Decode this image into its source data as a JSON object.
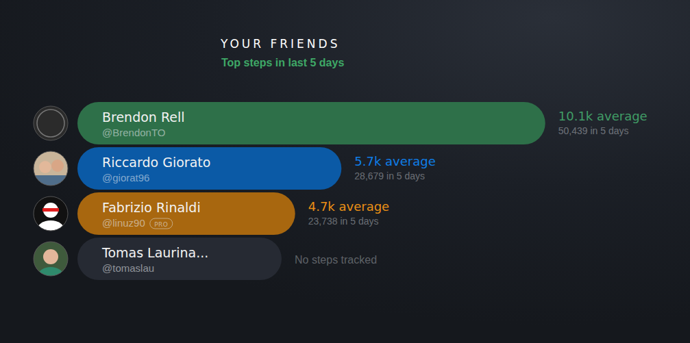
{
  "chart_data": {
    "type": "bar",
    "orientation": "horizontal",
    "title": "YOUR FRIENDS",
    "subtitle": "Top steps in last 5 days",
    "categories": [
      "Brendon Rell",
      "Riccardo Giorato",
      "Fabrizio Rinaldi",
      "Tomas Laurina..."
    ],
    "handles": [
      "@BrendonTO",
      "@giorat96",
      "@linuz90",
      "@tomaslau"
    ],
    "badges": [
      null,
      null,
      "PRO",
      null
    ],
    "values": [
      10.1,
      5.7,
      4.7,
      null
    ],
    "value_labels": [
      "10.1k average",
      "5.7k average",
      "4.7k average",
      "No steps tracked"
    ],
    "total_labels": [
      "50,439 in 5 days",
      "28,679 in 5 days",
      "23,738 in 5 days",
      null
    ],
    "colors": [
      "#2e7049",
      "#0b5aa6",
      "#a8670f",
      "#262a33"
    ],
    "xlim": [
      0,
      11
    ],
    "tick_labels": false,
    "data_labels": true,
    "grid": false
  }
}
